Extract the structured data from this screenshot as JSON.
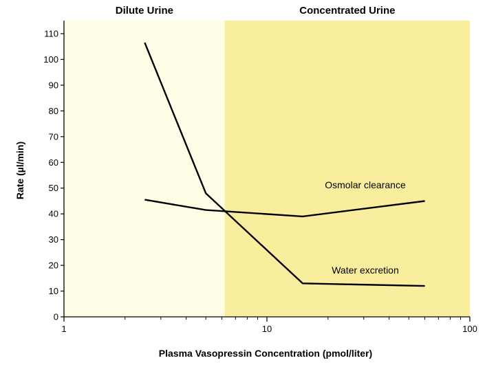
{
  "chart_data": {
    "type": "line",
    "xlabel": "Plasma Vasopressin Concentration (pmol/liter)",
    "ylabel": "Rate (µl/min)",
    "xscale": "log",
    "xlim": [
      1,
      100
    ],
    "ylim": [
      0,
      110
    ],
    "x_ticks": [
      1,
      10,
      100
    ],
    "x_tick_labels": [
      "1",
      "10",
      "100"
    ],
    "y_ticks": [
      0,
      10,
      20,
      30,
      40,
      50,
      60,
      70,
      80,
      90,
      100,
      110
    ],
    "y_tick_labels": [
      "0",
      "10",
      "20",
      "30",
      "40",
      "50",
      "60",
      "70",
      "80",
      "90",
      "100",
      "110"
    ],
    "grid": false,
    "regions": [
      {
        "label": "Dilute Urine",
        "x_range": [
          1,
          6.2
        ],
        "color": "#fefde6"
      },
      {
        "label": "Concentrated Urine",
        "x_range": [
          6.2,
          100
        ],
        "color": "#f9ee9d"
      }
    ],
    "series": [
      {
        "name": "Water excretion",
        "x": [
          2.5,
          5,
          15,
          60
        ],
        "y": [
          106.5,
          48,
          13,
          12
        ],
        "color": "#000000"
      },
      {
        "name": "Osmolar clearance",
        "x": [
          2.5,
          5,
          15,
          60
        ],
        "y": [
          45.5,
          41.5,
          39,
          45
        ],
        "color": "#000000"
      }
    ]
  }
}
